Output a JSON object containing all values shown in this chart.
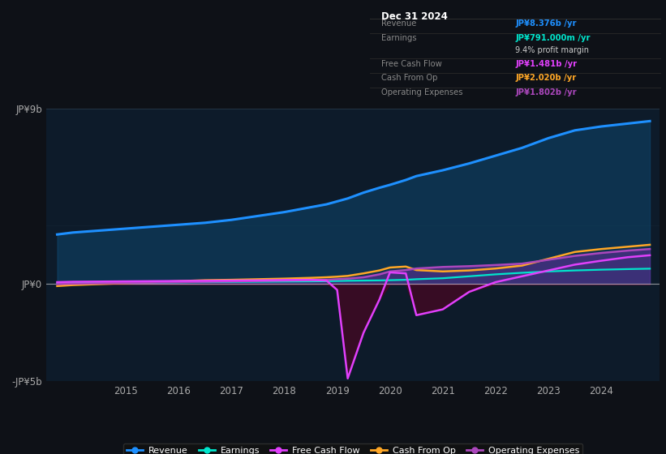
{
  "background_color": "#0e1117",
  "plot_bg_color": "#0d1b2a",
  "info_box_bg": "#0a0a0a",
  "info_box_title": "Dec 31 2024",
  "info_rows": [
    {
      "label": "Revenue",
      "value": "JP¥8.376b /yr",
      "value_color": "#1e90ff"
    },
    {
      "label": "Earnings",
      "value": "JP¥791.000m /yr",
      "value_color": "#00e5cc"
    },
    {
      "label": "",
      "value": "9.4% profit margin",
      "value_color": "#ffffff"
    },
    {
      "label": "Free Cash Flow",
      "value": "JP¥1.481b /yr",
      "value_color": "#e040fb"
    },
    {
      "label": "Cash From Op",
      "value": "JP¥2.020b /yr",
      "value_color": "#ffa726"
    },
    {
      "label": "Operating Expenses",
      "value": "JP¥1.802b /yr",
      "value_color": "#ab47bc"
    }
  ],
  "years": [
    2013.7,
    2014.0,
    2014.5,
    2015.0,
    2015.5,
    2016.0,
    2016.5,
    2017.0,
    2017.5,
    2018.0,
    2018.5,
    2018.8,
    2019.0,
    2019.2,
    2019.5,
    2019.8,
    2020.0,
    2020.3,
    2020.5,
    2021.0,
    2021.5,
    2022.0,
    2022.5,
    2023.0,
    2023.5,
    2024.0,
    2024.5,
    2024.92
  ],
  "revenue": [
    2.55,
    2.65,
    2.75,
    2.85,
    2.95,
    3.05,
    3.15,
    3.3,
    3.5,
    3.7,
    3.95,
    4.1,
    4.25,
    4.4,
    4.7,
    4.95,
    5.1,
    5.35,
    5.55,
    5.85,
    6.2,
    6.6,
    7.0,
    7.5,
    7.9,
    8.1,
    8.25,
    8.376
  ],
  "earnings": [
    0.04,
    0.05,
    0.06,
    0.07,
    0.08,
    0.09,
    0.1,
    0.11,
    0.12,
    0.13,
    0.14,
    0.15,
    0.16,
    0.17,
    0.18,
    0.19,
    0.2,
    0.22,
    0.25,
    0.3,
    0.4,
    0.5,
    0.58,
    0.65,
    0.7,
    0.74,
    0.77,
    0.791
  ],
  "free_cash_flow": [
    0.1,
    0.12,
    0.13,
    0.14,
    0.15,
    0.16,
    0.17,
    0.18,
    0.19,
    0.21,
    0.22,
    0.18,
    -0.3,
    -4.85,
    -2.5,
    -0.8,
    0.6,
    0.55,
    -1.6,
    -1.3,
    -0.4,
    0.1,
    0.4,
    0.7,
    1.0,
    1.2,
    1.38,
    1.481
  ],
  "cash_from_op": [
    -0.1,
    -0.05,
    0.0,
    0.05,
    0.1,
    0.15,
    0.2,
    0.22,
    0.25,
    0.28,
    0.32,
    0.35,
    0.38,
    0.42,
    0.55,
    0.7,
    0.85,
    0.9,
    0.72,
    0.65,
    0.7,
    0.8,
    0.95,
    1.3,
    1.65,
    1.8,
    1.92,
    2.02
  ],
  "operating_expenses": [
    0.0,
    0.02,
    0.04,
    0.06,
    0.08,
    0.1,
    0.12,
    0.14,
    0.16,
    0.18,
    0.2,
    0.22,
    0.25,
    0.28,
    0.35,
    0.5,
    0.65,
    0.72,
    0.8,
    0.88,
    0.92,
    0.98,
    1.05,
    1.25,
    1.45,
    1.6,
    1.72,
    1.802
  ],
  "ylim": [
    -5.0,
    9.0
  ],
  "xlim": [
    2013.5,
    2025.1
  ],
  "ytick_positions": [
    -5,
    0,
    9
  ],
  "ytick_labels": [
    "-JP¥5b",
    "JP¥0",
    "JP¥9b"
  ],
  "xtick_positions": [
    2015,
    2016,
    2017,
    2018,
    2019,
    2020,
    2021,
    2022,
    2023,
    2024
  ],
  "revenue_color": "#1e90ff",
  "earnings_color": "#00e5cc",
  "fcf_color": "#e040fb",
  "cash_op_color": "#ffa726",
  "op_exp_color": "#ab47bc",
  "legend_labels": [
    "Revenue",
    "Earnings",
    "Free Cash Flow",
    "Cash From Op",
    "Operating Expenses"
  ],
  "legend_colors": [
    "#1e90ff",
    "#00e5cc",
    "#e040fb",
    "#ffa726",
    "#ab47bc"
  ]
}
